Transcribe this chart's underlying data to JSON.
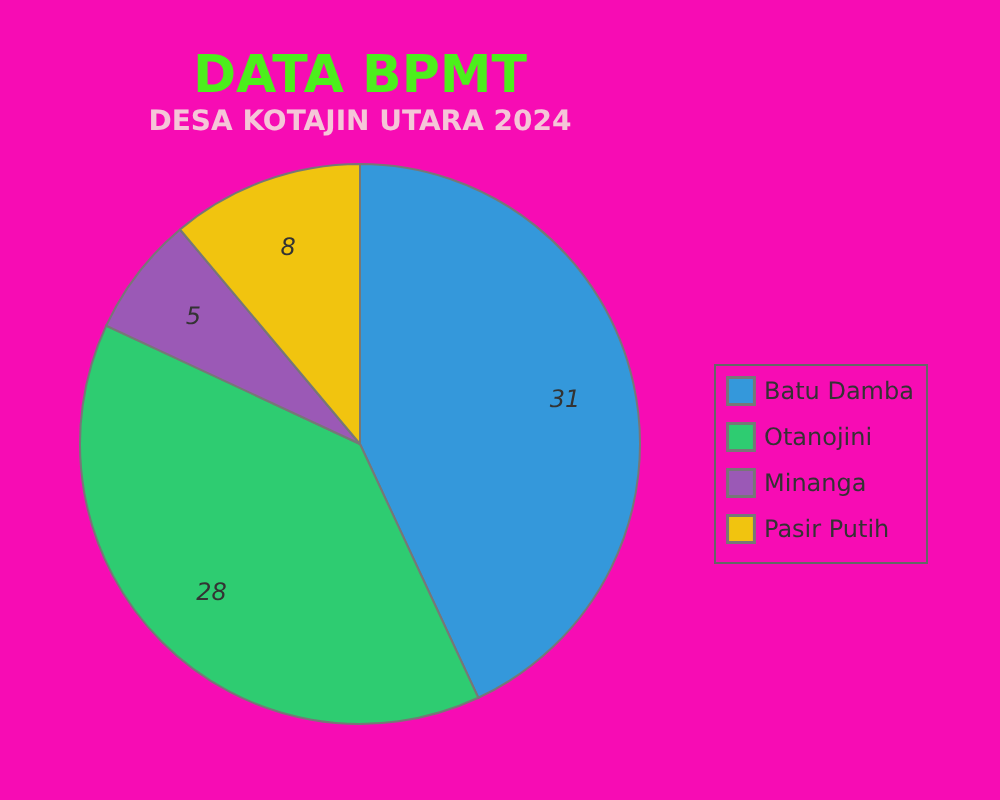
{
  "chart_data": {
    "type": "pie",
    "title": "DATA BPMT",
    "subtitle": "DESA KOTAJIN UTARA 2024",
    "categories": [
      "Batu Damba",
      "Otanojini",
      "Minanga",
      "Pasir Putih"
    ],
    "values": [
      31,
      28,
      5,
      8
    ],
    "colors": [
      "#3498db",
      "#2ecc71",
      "#9b59b6",
      "#f1c40f"
    ],
    "data_labels": true,
    "legend": "right"
  }
}
